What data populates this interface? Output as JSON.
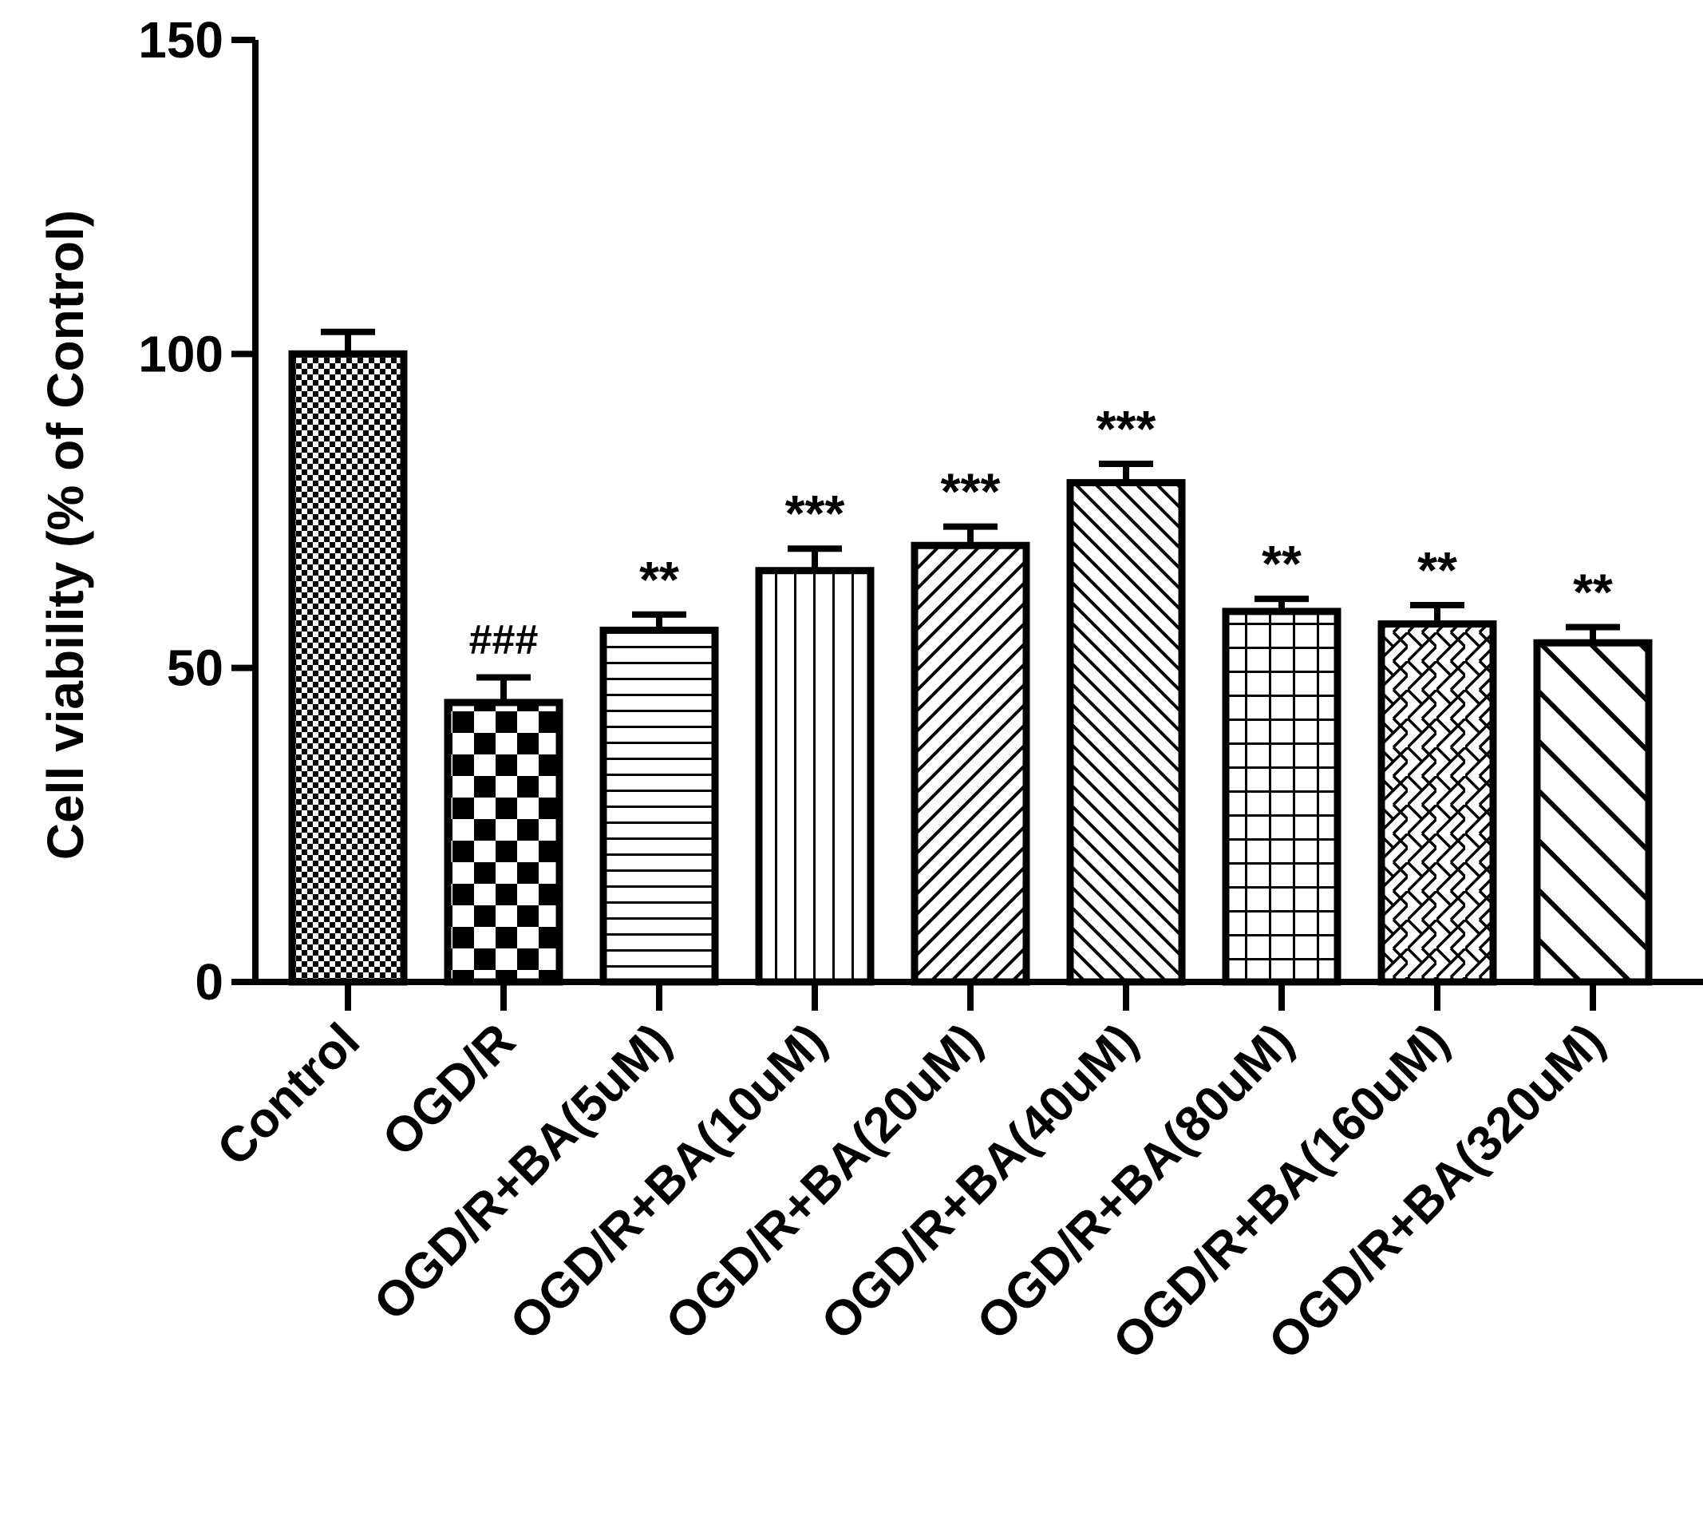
{
  "chart_data": {
    "type": "bar",
    "title": "",
    "xlabel": "",
    "ylabel": "Cell viability (% of Control)",
    "ylim": [
      0,
      150
    ],
    "yticks": [
      0,
      50,
      100,
      150
    ],
    "grid": false,
    "categories": [
      "Control",
      "OGD/R",
      "OGD/R+BA(5uM)",
      "OGD/R+BA(10uM)",
      "OGD/R+BA(20uM)",
      "OGD/R+BA(40uM)",
      "OGD/R+BA(80uM)",
      "OGD/R+BA(160uM)",
      "OGD/R+BA(320uM)"
    ],
    "values": [
      100,
      44.5,
      56,
      65.5,
      69.5,
      79.5,
      59,
      57,
      54
    ],
    "errors": [
      3.5,
      4,
      2.5,
      3.5,
      3,
      3,
      2,
      3,
      2.5
    ],
    "annotations": [
      "",
      "###",
      "**",
      "***",
      "***",
      "***",
      "**",
      "**",
      "**"
    ],
    "patterns": [
      "fine-checker",
      "checker",
      "horizontal-lines",
      "vertical-lines",
      "diagonal-up-dense",
      "diagonal-down-dense",
      "grid",
      "zigzag",
      "diagonal-down-wide"
    ]
  }
}
